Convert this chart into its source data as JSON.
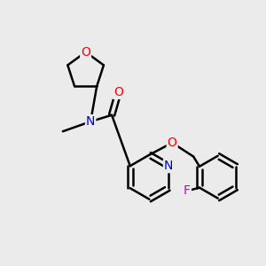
{
  "bg_color": "#ebebeb",
  "atom_colors": {
    "N": "#0000cc",
    "O": "#ff0000",
    "F": "#cc00cc"
  },
  "bond_lw": 1.8,
  "font_size": 10,
  "fig_size": [
    3.0,
    3.0
  ],
  "dpi": 100,
  "xlim": [
    0,
    8.0
  ],
  "ylim": [
    0,
    8.0
  ]
}
